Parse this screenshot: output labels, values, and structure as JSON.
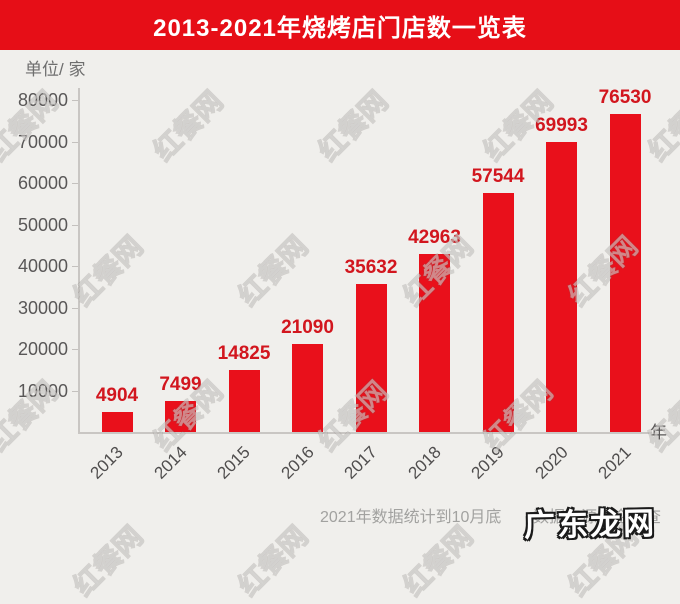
{
  "title": "2013-2021年烧烤店门店数一览表",
  "unit_label": "单位/ 家",
  "chart_data": {
    "type": "bar",
    "title": "2013-2021年烧烤店门店数一览表",
    "categories": [
      "2013",
      "2014",
      "2015",
      "2016",
      "2017",
      "2018",
      "2019",
      "2020",
      "2021"
    ],
    "values": [
      4904,
      7499,
      14825,
      21090,
      35632,
      42963,
      57544,
      69993,
      76530
    ],
    "xlabel": "年",
    "ylabel": "单位/ 家",
    "ylim": [
      0,
      80000
    ],
    "ytick_step": 10000,
    "grid": false,
    "legend": false,
    "bar_color": "#e9101b",
    "value_label_color": "#d2161e"
  },
  "footnotes": {
    "note": "2021年数据统计到10月底",
    "source": "数据来源：企查查"
  },
  "watermarks": {
    "background_text": "红餐网",
    "overlay_text": "广东龙网"
  },
  "colors": {
    "banner": "#e60e17",
    "background": "#f0efec",
    "bar": "#e9101b",
    "value_label": "#d2161e",
    "axis_text": "#595757",
    "footnote_text": "#a2a2a0"
  }
}
